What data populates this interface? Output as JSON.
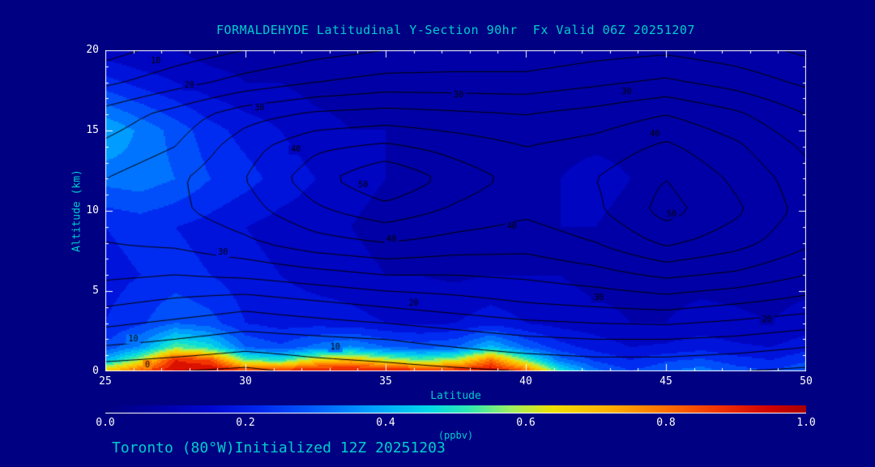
{
  "colors": {
    "background": "#000082",
    "title_text": "#00CDCD",
    "tick_text": "#FFFFFF",
    "axis": "#FFFFFF",
    "contour_line": "#000000"
  },
  "chart_data": {
    "type": "heatmap",
    "title": "FORMALDEHYDE Latitudinal Y-Section 90hr  Fx Valid 06Z 20251207",
    "footer": "Toronto (80°W)Initialized 12Z 20251203",
    "xlabel": "Latitude",
    "ylabel": "Altitude (km)",
    "units_label": "(ppbv)",
    "x_range": [
      25,
      50
    ],
    "y_range": [
      0,
      20
    ],
    "x_ticks": [
      "25",
      "30",
      "35",
      "40",
      "45",
      "50"
    ],
    "y_ticks": [
      "20",
      "15",
      "10",
      "5",
      "0"
    ],
    "colorbar_ticks": [
      "0.0",
      "0.2",
      "0.4",
      "0.6",
      "0.8",
      "1.0"
    ],
    "colorbar_range": [
      0,
      1
    ],
    "grid": false,
    "colormap_stops": [
      {
        "v": 0.0,
        "c": "#000080"
      },
      {
        "v": 0.08,
        "c": "#0000A8"
      },
      {
        "v": 0.15,
        "c": "#0008D0"
      },
      {
        "v": 0.22,
        "c": "#0028F0"
      },
      {
        "v": 0.3,
        "c": "#0060FF"
      },
      {
        "v": 0.38,
        "c": "#00A0FF"
      },
      {
        "v": 0.46,
        "c": "#00D8E8"
      },
      {
        "v": 0.52,
        "c": "#30E8B0"
      },
      {
        "v": 0.58,
        "c": "#A0F060"
      },
      {
        "v": 0.64,
        "c": "#F0E000"
      },
      {
        "v": 0.72,
        "c": "#FFB000"
      },
      {
        "v": 0.8,
        "c": "#FF7000"
      },
      {
        "v": 0.88,
        "c": "#F03000"
      },
      {
        "v": 0.95,
        "c": "#D00000"
      },
      {
        "v": 1.0,
        "c": "#A80000"
      }
    ],
    "fill_field": {
      "comment": "formaldehyde ppbv, rows = alts ascending, cols = lats ascending",
      "lats": [
        25,
        26.25,
        27.5,
        28.75,
        30,
        31.25,
        32.5,
        33.75,
        35,
        36.25,
        37.5,
        38.75,
        40,
        41.25,
        42.5,
        43.75,
        45,
        46.25,
        47.5,
        48.75,
        50
      ],
      "alts": [
        0,
        0.7,
        1.5,
        3,
        6,
        9,
        12,
        15,
        18,
        20
      ],
      "values_ppbv": [
        [
          0.7,
          0.85,
          0.96,
          0.97,
          0.9,
          0.92,
          0.95,
          0.95,
          0.94,
          0.92,
          0.92,
          0.96,
          0.85,
          0.5,
          0.32,
          0.25,
          0.3,
          0.33,
          0.28,
          0.25,
          0.3
        ],
        [
          0.4,
          0.6,
          0.9,
          0.85,
          0.55,
          0.5,
          0.65,
          0.7,
          0.62,
          0.55,
          0.6,
          0.8,
          0.55,
          0.32,
          0.24,
          0.2,
          0.24,
          0.26,
          0.22,
          0.2,
          0.24
        ],
        [
          0.26,
          0.36,
          0.55,
          0.48,
          0.3,
          0.26,
          0.32,
          0.36,
          0.3,
          0.28,
          0.3,
          0.42,
          0.3,
          0.22,
          0.18,
          0.15,
          0.16,
          0.18,
          0.16,
          0.15,
          0.18
        ],
        [
          0.2,
          0.24,
          0.3,
          0.27,
          0.2,
          0.18,
          0.18,
          0.17,
          0.15,
          0.14,
          0.15,
          0.18,
          0.15,
          0.13,
          0.12,
          0.1,
          0.1,
          0.12,
          0.11,
          0.1,
          0.12
        ],
        [
          0.18,
          0.2,
          0.22,
          0.2,
          0.17,
          0.15,
          0.13,
          0.12,
          0.1,
          0.1,
          0.09,
          0.1,
          0.1,
          0.1,
          0.08,
          0.08,
          0.08,
          0.08,
          0.08,
          0.08,
          0.08
        ],
        [
          0.2,
          0.22,
          0.2,
          0.18,
          0.15,
          0.13,
          0.12,
          0.1,
          0.08,
          0.08,
          0.08,
          0.08,
          0.08,
          0.1,
          0.1,
          0.08,
          0.08,
          0.09,
          0.09,
          0.08,
          0.08
        ],
        [
          0.32,
          0.33,
          0.3,
          0.25,
          0.22,
          0.18,
          0.15,
          0.12,
          0.1,
          0.08,
          0.08,
          0.08,
          0.08,
          0.1,
          0.12,
          0.1,
          0.08,
          0.08,
          0.08,
          0.08,
          0.08
        ],
        [
          0.4,
          0.34,
          0.28,
          0.22,
          0.18,
          0.15,
          0.12,
          0.1,
          0.1,
          0.08,
          0.08,
          0.08,
          0.08,
          0.08,
          0.08,
          0.08,
          0.08,
          0.08,
          0.08,
          0.08,
          0.08
        ],
        [
          0.22,
          0.18,
          0.15,
          0.12,
          0.1,
          0.1,
          0.08,
          0.08,
          0.08,
          0.08,
          0.07,
          0.07,
          0.07,
          0.07,
          0.07,
          0.07,
          0.07,
          0.07,
          0.07,
          0.07,
          0.07
        ],
        [
          0.12,
          0.1,
          0.1,
          0.08,
          0.08,
          0.08,
          0.07,
          0.07,
          0.07,
          0.07,
          0.07,
          0.06,
          0.06,
          0.06,
          0.06,
          0.06,
          0.06,
          0.06,
          0.06,
          0.06,
          0.06
        ]
      ]
    },
    "contour_field": {
      "comment": "black overlay contours, rows = alts ascending, cols = lats ascending",
      "lats": [
        25,
        27.5,
        30,
        32.5,
        35,
        37.5,
        40,
        42.5,
        45,
        47.5,
        50
      ],
      "alts": [
        0,
        2,
        4,
        6,
        8,
        10,
        12,
        14,
        16,
        18,
        20
      ],
      "levels": [
        1,
        5,
        10,
        15,
        20,
        25,
        30,
        35,
        40,
        45,
        50
      ],
      "values": [
        [
          2,
          1,
          0,
          2,
          3,
          4,
          5,
          6,
          6,
          5,
          4
        ],
        [
          12,
          10,
          8,
          9,
          10,
          12,
          14,
          15,
          15,
          14,
          12
        ],
        [
          20,
          18,
          16,
          18,
          20,
          22,
          24,
          25,
          26,
          24,
          22
        ],
        [
          26,
          25,
          26,
          28,
          30,
          30,
          31,
          33,
          36,
          34,
          30
        ],
        [
          30,
          31,
          34,
          38,
          40,
          38,
          37,
          40,
          46,
          42,
          36
        ],
        [
          32,
          34,
          38,
          44,
          48,
          44,
          41,
          44,
          52,
          46,
          38
        ],
        [
          30,
          34,
          40,
          48,
          55,
          48,
          43,
          45,
          50,
          44,
          37
        ],
        [
          26,
          30,
          38,
          44,
          46,
          43,
          40,
          42,
          46,
          41,
          34
        ],
        [
          22,
          27,
          33,
          36,
          37,
          36,
          35,
          37,
          40,
          36,
          30
        ],
        [
          14,
          18,
          22,
          25,
          27,
          27,
          27,
          29,
          31,
          28,
          24
        ],
        [
          8,
          12,
          15,
          18,
          20,
          21,
          21,
          23,
          24,
          22,
          19
        ]
      ]
    },
    "contour_labels": [
      {
        "value": "10",
        "lat": 26.8,
        "alt": 19.3
      },
      {
        "value": "20",
        "lat": 28.0,
        "alt": 17.8
      },
      {
        "value": "30",
        "lat": 30.5,
        "alt": 16.4
      },
      {
        "value": "40",
        "lat": 31.8,
        "alt": 13.8
      },
      {
        "value": "50",
        "lat": 34.2,
        "alt": 11.6
      },
      {
        "value": "40",
        "lat": 35.2,
        "alt": 8.2
      },
      {
        "value": "30",
        "lat": 29.2,
        "alt": 7.4
      },
      {
        "value": "20",
        "lat": 36.0,
        "alt": 4.2
      },
      {
        "value": "10",
        "lat": 26.0,
        "alt": 2.0
      },
      {
        "value": "0",
        "lat": 26.5,
        "alt": 0.4
      },
      {
        "value": "10",
        "lat": 33.2,
        "alt": 1.5
      },
      {
        "value": "30",
        "lat": 37.6,
        "alt": 17.2
      },
      {
        "value": "30",
        "lat": 43.6,
        "alt": 17.4
      },
      {
        "value": "40",
        "lat": 44.6,
        "alt": 14.8
      },
      {
        "value": "50",
        "lat": 45.2,
        "alt": 9.8
      },
      {
        "value": "40",
        "lat": 39.5,
        "alt": 9.0
      },
      {
        "value": "30",
        "lat": 42.6,
        "alt": 4.6
      },
      {
        "value": "20",
        "lat": 48.6,
        "alt": 3.2
      }
    ]
  }
}
